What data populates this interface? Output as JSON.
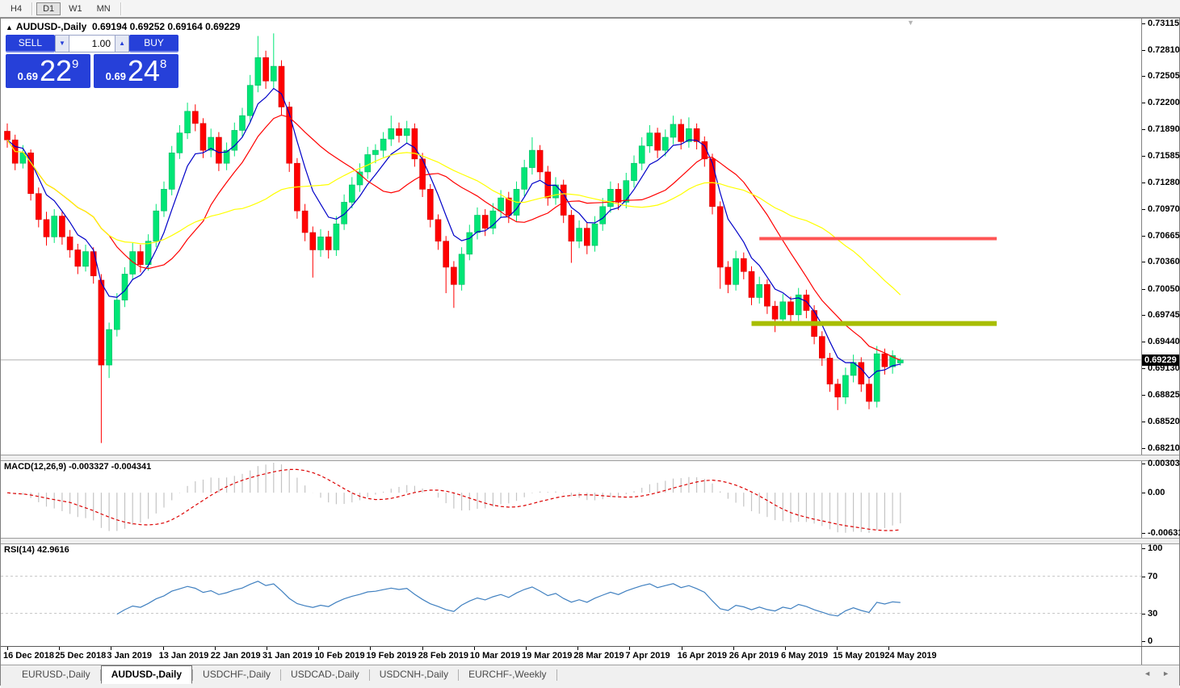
{
  "toolbar": {
    "timeframes": [
      {
        "label": "H4",
        "active": false
      },
      {
        "label": "D1",
        "active": true
      },
      {
        "label": "W1",
        "active": false
      },
      {
        "label": "MN",
        "active": false
      }
    ]
  },
  "chart": {
    "header": {
      "dropdown_marker": "▲",
      "symbol": "AUDUSD-,Daily",
      "ohlc": "0.69194 0.69252 0.69164 0.69229"
    },
    "one_click": {
      "sell_label": "SELL",
      "buy_label": "BUY",
      "volume": "1.00",
      "spin_down": "▼",
      "spin_up": "▲",
      "sell_price": {
        "prefix": "0.69",
        "big": "22",
        "sup": "9"
      },
      "buy_price": {
        "prefix": "0.69",
        "big": "24",
        "sup": "8"
      }
    },
    "scroll_marker": "▼"
  },
  "chart_data": {
    "type": "candlestick",
    "symbol": "AUDUSD-,Daily",
    "timeframe": "Daily",
    "last_candle": {
      "open": 0.69194,
      "high": 0.69252,
      "low": 0.69164,
      "close": 0.69229
    },
    "current_price": 0.69229,
    "bid_tag": "0.69229",
    "price_axis": {
      "top_tick": 0.73115,
      "bottom_tick": 0.6821
    },
    "price_ticks": [
      "0.73115",
      "0.72810",
      "0.72505",
      "0.72200",
      "0.71890",
      "0.71585",
      "0.71280",
      "0.70970",
      "0.70665",
      "0.70360",
      "0.70050",
      "0.69745",
      "0.69440",
      "0.69130",
      "0.68825",
      "0.68520",
      "0.68210"
    ],
    "date_labels": [
      "16 Dec 2018",
      "25 Dec 2018",
      "3 Jan 2019",
      "13 Jan 2019",
      "22 Jan 2019",
      "31 Jan 2019",
      "10 Feb 2019",
      "19 Feb 2019",
      "28 Feb 2019",
      "10 Mar 2019",
      "19 Mar 2019",
      "28 Mar 2019",
      "7 Apr 2019",
      "16 Apr 2019",
      "26 Apr 2019",
      "6 May 2019",
      "15 May 2019",
      "24 May 2019"
    ],
    "colors": {
      "background": "#FFFFFF",
      "up": "#00E676",
      "up_stroke": "#00B765",
      "down": "#FF0000",
      "down_stroke": "#D40000",
      "ma_fast": "#0000C8",
      "ma_mid": "#FF0000",
      "ma_slow": "#FFFF00",
      "bid_line": "#B4B4B4",
      "resistance": "#FF5454",
      "support": "#A8BE00",
      "macd_histogram": "#C4C4C4",
      "macd_signal": "#DC0000",
      "rsi_line": "#4080C0",
      "rsi_levels": "#C8C8C8"
    },
    "hlines": [
      {
        "name": "resistance-line",
        "price": 0.7063,
        "from_index": 96,
        "to_index": 126.3,
        "thickness": 4,
        "color_key": "resistance"
      },
      {
        "name": "support-line",
        "price": 0.6965,
        "from_index": 95,
        "to_index": 126.3,
        "thickness": 6,
        "color_key": "support"
      }
    ],
    "moving_averages": [
      {
        "name": "ma-fast-line",
        "method": "ema",
        "period": 6,
        "color_key": "ma_fast"
      },
      {
        "name": "ma-mid-line",
        "method": "sma",
        "period": 14,
        "color_key": "ma_mid"
      },
      {
        "name": "ma-slow-line",
        "method": "sma",
        "period": 30,
        "color_key": "ma_slow"
      }
    ],
    "indicators": {
      "macd": {
        "label": "MACD(12,26,9) -0.003327 -0.004341",
        "params": [
          12,
          26,
          9
        ],
        "value_main": -0.003327,
        "value_signal": -0.004341,
        "ticks": {
          "top": "0.003035",
          "zero": "0.00",
          "bottom": "-0.006311"
        },
        "axis_max": 0.003035,
        "axis_min": -0.006311
      },
      "rsi": {
        "label": "RSI(14) 42.9616",
        "period": 14,
        "value": 42.9616,
        "ticks": [
          "100",
          "70",
          "30",
          "0"
        ],
        "levels": [
          70,
          30
        ],
        "axis_max": 100,
        "axis_min": 0
      }
    },
    "candles": [
      [
        0.7187,
        0.7196,
        0.7168,
        0.7177
      ],
      [
        0.7177,
        0.7183,
        0.7142,
        0.715
      ],
      [
        0.715,
        0.7171,
        0.7144,
        0.7162
      ],
      [
        0.7162,
        0.7166,
        0.7107,
        0.7115
      ],
      [
        0.7115,
        0.7122,
        0.7076,
        0.7085
      ],
      [
        0.7085,
        0.7094,
        0.7055,
        0.7065
      ],
      [
        0.7065,
        0.7097,
        0.7058,
        0.7089
      ],
      [
        0.7089,
        0.7094,
        0.7056,
        0.7065
      ],
      [
        0.7065,
        0.7073,
        0.7041,
        0.705
      ],
      [
        0.705,
        0.7057,
        0.7022,
        0.7031
      ],
      [
        0.7031,
        0.7056,
        0.7025,
        0.7048
      ],
      [
        0.7048,
        0.7053,
        0.7011,
        0.702
      ],
      [
        0.7015,
        0.7022,
        0.6827,
        0.6917
      ],
      [
        0.6917,
        0.6966,
        0.6902,
        0.6958
      ],
      [
        0.6958,
        0.7,
        0.695,
        0.6992
      ],
      [
        0.6992,
        0.703,
        0.6984,
        0.7022
      ],
      [
        0.7022,
        0.7058,
        0.7015,
        0.7048
      ],
      [
        0.7048,
        0.7056,
        0.7024,
        0.7033
      ],
      [
        0.7033,
        0.7068,
        0.7026,
        0.706
      ],
      [
        0.706,
        0.7103,
        0.7053,
        0.7095
      ],
      [
        0.7095,
        0.7129,
        0.7088,
        0.712
      ],
      [
        0.712,
        0.717,
        0.7113,
        0.7162
      ],
      [
        0.7162,
        0.7194,
        0.7155,
        0.7185
      ],
      [
        0.7185,
        0.722,
        0.7178,
        0.721
      ],
      [
        0.721,
        0.7218,
        0.7187,
        0.7196
      ],
      [
        0.7196,
        0.7202,
        0.7156,
        0.7165
      ],
      [
        0.7165,
        0.719,
        0.7157,
        0.718
      ],
      [
        0.718,
        0.7186,
        0.7141,
        0.715
      ],
      [
        0.715,
        0.7174,
        0.7142,
        0.7165
      ],
      [
        0.7165,
        0.7197,
        0.7158,
        0.7188
      ],
      [
        0.7188,
        0.7214,
        0.718,
        0.7205
      ],
      [
        0.7205,
        0.7252,
        0.7198,
        0.724
      ],
      [
        0.724,
        0.7297,
        0.7232,
        0.7272
      ],
      [
        0.7272,
        0.728,
        0.7236,
        0.7245
      ],
      [
        0.7245,
        0.73,
        0.7237,
        0.7262
      ],
      [
        0.7262,
        0.7269,
        0.7205,
        0.7215
      ],
      [
        0.7215,
        0.7221,
        0.714,
        0.715
      ],
      [
        0.715,
        0.7156,
        0.7086,
        0.7095
      ],
      [
        0.7095,
        0.7103,
        0.706,
        0.707
      ],
      [
        0.707,
        0.7077,
        0.7018,
        0.705
      ],
      [
        0.705,
        0.7074,
        0.7042,
        0.7065
      ],
      [
        0.7065,
        0.7072,
        0.704,
        0.705
      ],
      [
        0.705,
        0.7089,
        0.7043,
        0.708
      ],
      [
        0.708,
        0.7114,
        0.7073,
        0.7105
      ],
      [
        0.7105,
        0.7134,
        0.7098,
        0.7125
      ],
      [
        0.7125,
        0.715,
        0.7117,
        0.714
      ],
      [
        0.714,
        0.7169,
        0.7132,
        0.716
      ],
      [
        0.716,
        0.7172,
        0.715,
        0.7165
      ],
      [
        0.7165,
        0.7186,
        0.7157,
        0.7178
      ],
      [
        0.7178,
        0.7205,
        0.717,
        0.719
      ],
      [
        0.719,
        0.7197,
        0.7174,
        0.7182
      ],
      [
        0.7182,
        0.7199,
        0.7173,
        0.719
      ],
      [
        0.719,
        0.7196,
        0.7146,
        0.7155
      ],
      [
        0.7155,
        0.7162,
        0.7111,
        0.712
      ],
      [
        0.712,
        0.7126,
        0.7076,
        0.7085
      ],
      [
        0.7085,
        0.7091,
        0.705,
        0.706
      ],
      [
        0.706,
        0.7066,
        0.7,
        0.703
      ],
      [
        0.703,
        0.7037,
        0.6983,
        0.701
      ],
      [
        0.701,
        0.7053,
        0.7003,
        0.7045
      ],
      [
        0.7045,
        0.7079,
        0.7038,
        0.707
      ],
      [
        0.707,
        0.7099,
        0.7062,
        0.709
      ],
      [
        0.709,
        0.7097,
        0.7066,
        0.7075
      ],
      [
        0.7075,
        0.7104,
        0.7068,
        0.7095
      ],
      [
        0.7095,
        0.7119,
        0.7087,
        0.711
      ],
      [
        0.711,
        0.7117,
        0.7081,
        0.709
      ],
      [
        0.709,
        0.7129,
        0.7083,
        0.712
      ],
      [
        0.712,
        0.7154,
        0.7112,
        0.7145
      ],
      [
        0.7145,
        0.718,
        0.7137,
        0.7165
      ],
      [
        0.7165,
        0.7171,
        0.7131,
        0.714
      ],
      [
        0.714,
        0.7147,
        0.7101,
        0.711
      ],
      [
        0.711,
        0.7134,
        0.7102,
        0.7125
      ],
      [
        0.7125,
        0.7131,
        0.7081,
        0.709
      ],
      [
        0.709,
        0.7096,
        0.7035,
        0.706
      ],
      [
        0.706,
        0.7084,
        0.7052,
        0.7075
      ],
      [
        0.7075,
        0.7082,
        0.7045,
        0.7055
      ],
      [
        0.7055,
        0.7089,
        0.7048,
        0.708
      ],
      [
        0.708,
        0.711,
        0.7072,
        0.71
      ],
      [
        0.71,
        0.7129,
        0.7093,
        0.712
      ],
      [
        0.712,
        0.7127,
        0.7096,
        0.7105
      ],
      [
        0.7105,
        0.7139,
        0.7098,
        0.713
      ],
      [
        0.713,
        0.7159,
        0.7122,
        0.715
      ],
      [
        0.715,
        0.718,
        0.7142,
        0.717
      ],
      [
        0.717,
        0.7194,
        0.7162,
        0.7185
      ],
      [
        0.7185,
        0.7191,
        0.7156,
        0.7165
      ],
      [
        0.7165,
        0.7189,
        0.7158,
        0.718
      ],
      [
        0.718,
        0.7205,
        0.7172,
        0.7195
      ],
      [
        0.7195,
        0.7201,
        0.7166,
        0.7175
      ],
      [
        0.7175,
        0.7203,
        0.7168,
        0.719
      ],
      [
        0.719,
        0.7196,
        0.7166,
        0.7175
      ],
      [
        0.7175,
        0.7181,
        0.7146,
        0.7155
      ],
      [
        0.7155,
        0.7161,
        0.7091,
        0.71
      ],
      [
        0.71,
        0.7106,
        0.7005,
        0.703
      ],
      [
        0.703,
        0.7037,
        0.7,
        0.701
      ],
      [
        0.701,
        0.7049,
        0.7003,
        0.704
      ],
      [
        0.704,
        0.7047,
        0.7016,
        0.7025
      ],
      [
        0.7025,
        0.7031,
        0.6986,
        0.6995
      ],
      [
        0.6995,
        0.7019,
        0.6988,
        0.701
      ],
      [
        0.701,
        0.7016,
        0.6976,
        0.6985
      ],
      [
        0.6985,
        0.6991,
        0.6955,
        0.697
      ],
      [
        0.697,
        0.6999,
        0.6963,
        0.699
      ],
      [
        0.699,
        0.6996,
        0.6966,
        0.6975
      ],
      [
        0.6975,
        0.7006,
        0.6968,
        0.6998
      ],
      [
        0.6998,
        0.7004,
        0.6971,
        0.698
      ],
      [
        0.698,
        0.6986,
        0.6941,
        0.695
      ],
      [
        0.695,
        0.6956,
        0.6916,
        0.6925
      ],
      [
        0.6925,
        0.6931,
        0.6886,
        0.6895
      ],
      [
        0.6895,
        0.6901,
        0.6865,
        0.688
      ],
      [
        0.688,
        0.6914,
        0.6872,
        0.6905
      ],
      [
        0.6905,
        0.6929,
        0.6897,
        0.692
      ],
      [
        0.692,
        0.6926,
        0.6886,
        0.6895
      ],
      [
        0.6895,
        0.6901,
        0.6866,
        0.6875
      ],
      [
        0.6875,
        0.6939,
        0.6868,
        0.693
      ],
      [
        0.693,
        0.6936,
        0.6906,
        0.6915
      ],
      [
        0.6915,
        0.6934,
        0.6907,
        0.6928
      ],
      [
        0.69194,
        0.69252,
        0.69164,
        0.69229
      ]
    ]
  },
  "tabbar": {
    "tabs": [
      {
        "label": "EURUSD-,Daily",
        "active": false
      },
      {
        "label": "AUDUSD-,Daily",
        "active": true
      },
      {
        "label": "USDCHF-,Daily",
        "active": false
      },
      {
        "label": "USDCAD-,Daily",
        "active": false
      },
      {
        "label": "USDCNH-,Daily",
        "active": false
      },
      {
        "label": "EURCHF-,Weekly",
        "active": false
      }
    ],
    "nav_left": "◄",
    "nav_right": "►"
  }
}
